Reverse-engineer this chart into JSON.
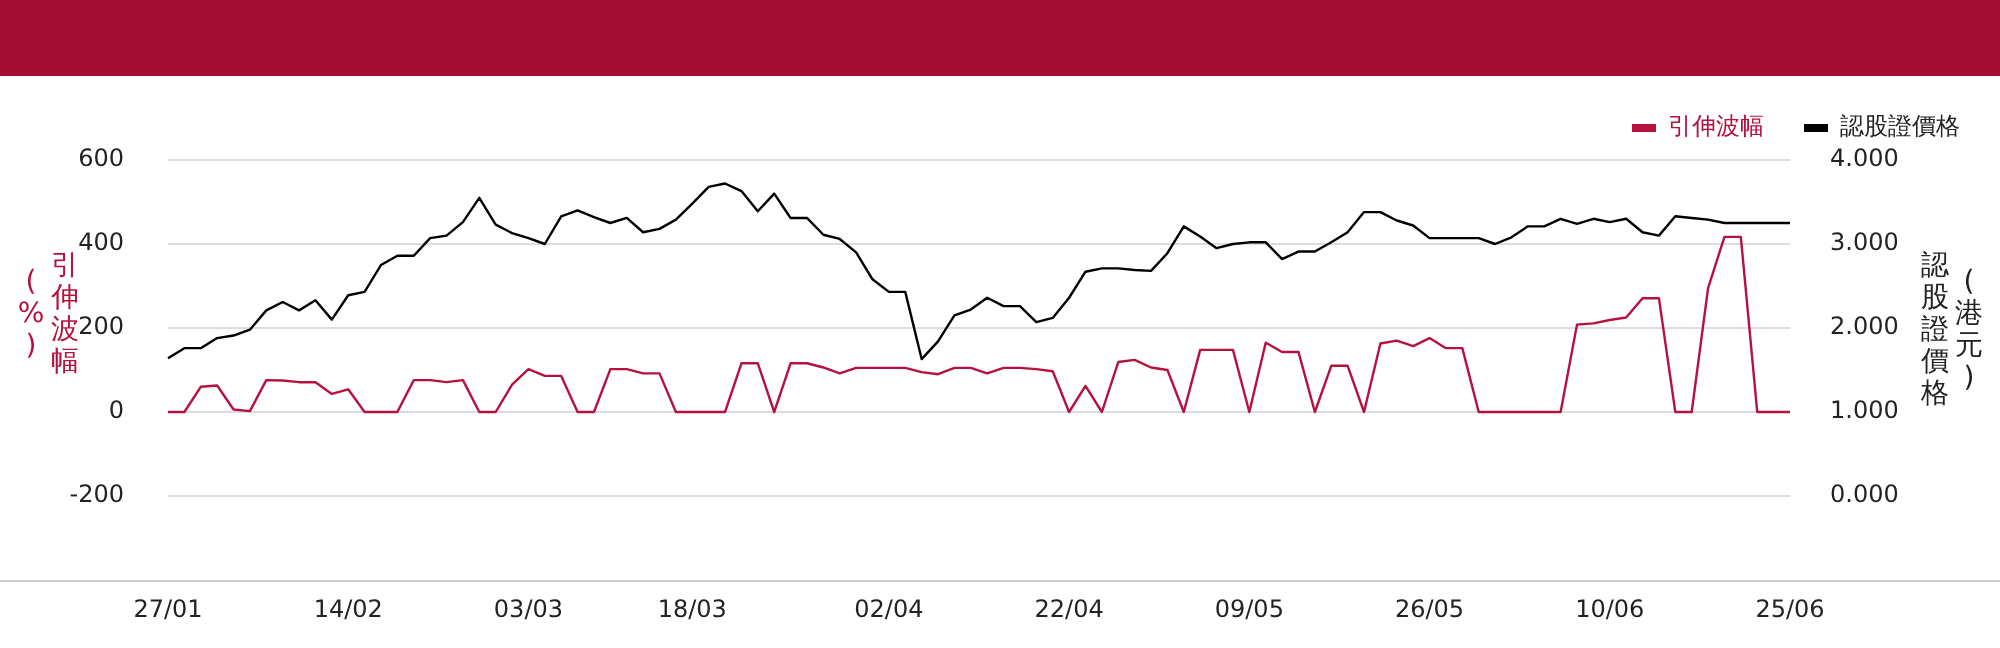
{
  "chart_data": {
    "type": "line",
    "categories": [
      "27/01",
      null,
      null,
      null,
      null,
      null,
      null,
      null,
      null,
      null,
      null,
      "14/02",
      null,
      null,
      null,
      null,
      null,
      null,
      null,
      null,
      null,
      null,
      "03/03",
      null,
      null,
      null,
      null,
      null,
      null,
      null,
      null,
      null,
      "18/03",
      null,
      null,
      null,
      null,
      null,
      null,
      null,
      null,
      null,
      null,
      null,
      "02/04",
      null,
      null,
      null,
      null,
      null,
      null,
      null,
      null,
      null,
      null,
      "22/04",
      null,
      null,
      null,
      null,
      null,
      null,
      null,
      null,
      null,
      null,
      "09/05",
      null,
      null,
      null,
      null,
      null,
      null,
      null,
      null,
      null,
      null,
      "26/05",
      null,
      null,
      null,
      null,
      null,
      null,
      null,
      null,
      null,
      null,
      "10/06",
      null,
      null,
      null,
      null,
      null,
      null,
      null,
      null,
      null,
      null,
      "25/06"
    ],
    "series": [
      {
        "name": "引伸波幅",
        "color": "#b5123f",
        "axis": "y",
        "values": [
          0,
          0,
          60,
          63,
          6,
          2,
          76,
          75,
          71,
          71,
          43,
          54,
          0,
          0,
          0,
          76,
          76,
          71,
          76,
          0,
          0,
          65,
          102,
          86,
          86,
          0,
          0,
          102,
          102,
          92,
          92,
          0,
          0,
          0,
          0,
          116,
          116,
          0,
          116,
          116,
          106,
          92,
          105,
          105,
          105,
          105,
          95,
          90,
          105,
          105,
          92,
          105,
          105,
          102,
          97,
          0,
          62,
          0,
          119,
          124,
          106,
          100,
          0,
          148,
          148,
          148,
          0,
          165,
          143,
          143,
          0,
          110,
          110,
          0,
          163,
          170,
          157,
          176,
          152,
          152,
          0,
          0,
          0,
          0,
          0,
          0,
          208,
          211,
          219,
          225,
          271,
          271,
          0,
          0,
          295,
          417,
          417,
          0,
          0,
          0
        ]
      },
      {
        "name": "認股證價格",
        "color": "#000000",
        "axis": "y2",
        "values": [
          1.64,
          1.76,
          1.76,
          1.88,
          1.91,
          1.98,
          2.21,
          2.31,
          2.21,
          2.33,
          2.1,
          2.39,
          2.43,
          2.75,
          2.86,
          2.86,
          3.07,
          3.1,
          3.26,
          3.55,
          3.23,
          3.13,
          3.07,
          3.0,
          3.33,
          3.4,
          3.32,
          3.25,
          3.31,
          3.14,
          3.18,
          3.29,
          3.48,
          3.68,
          3.72,
          3.63,
          3.39,
          3.6,
          3.31,
          3.31,
          3.11,
          3.06,
          2.9,
          2.58,
          2.43,
          2.43,
          1.63,
          1.84,
          2.15,
          2.22,
          2.36,
          2.26,
          2.26,
          2.07,
          2.12,
          2.36,
          2.67,
          2.71,
          2.71,
          2.69,
          2.68,
          2.89,
          3.21,
          3.09,
          2.95,
          3.0,
          3.02,
          3.02,
          2.82,
          2.91,
          2.91,
          3.02,
          3.14,
          3.38,
          3.38,
          3.28,
          3.22,
          3.07,
          3.07,
          3.07,
          3.07,
          3.0,
          3.08,
          3.21,
          3.21,
          3.3,
          3.24,
          3.3,
          3.26,
          3.3,
          3.14,
          3.1,
          3.33,
          3.31,
          3.29,
          3.25,
          3.25,
          3.25,
          3.25,
          3.25
        ]
      }
    ],
    "ylabel": "引伸波幅 (%)",
    "y2label": "認股證價格 (港元)",
    "ylim": [
      -400,
      600
    ],
    "yticks": [
      -200,
      0,
      200,
      400,
      600
    ],
    "y2lim": [
      -1,
      4
    ],
    "y2ticks": [
      {
        "value": 0,
        "label": "0.000"
      },
      {
        "value": 1,
        "label": "1.000"
      },
      {
        "value": 2,
        "label": "2.000"
      },
      {
        "value": 3,
        "label": "3.000"
      },
      {
        "value": 4,
        "label": "4.000"
      }
    ],
    "grid": "y",
    "legend": "top right",
    "marker": "none",
    "line_style": "solid"
  }
}
